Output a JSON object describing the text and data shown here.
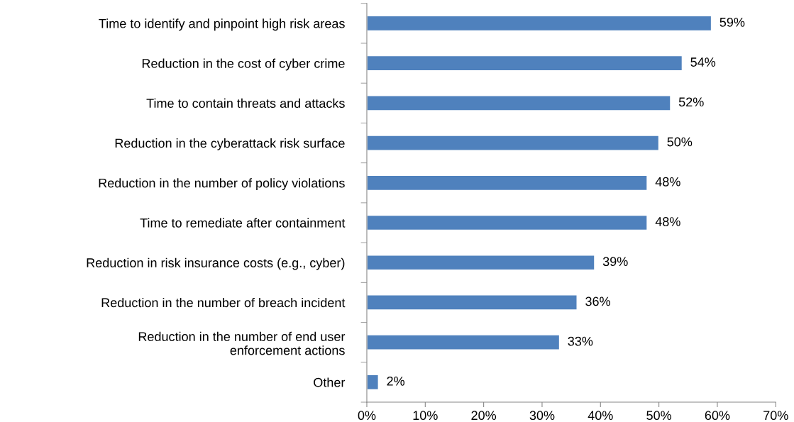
{
  "chart_data": {
    "type": "bar",
    "orientation": "horizontal",
    "categories": [
      "Time to identify and pinpoint high risk areas",
      "Reduction in the cost of cyber crime",
      "Time to contain threats and attacks",
      "Reduction in the cyberattack risk surface",
      "Reduction in the number of policy violations",
      "Time to remediate after containment",
      "Reduction in risk insurance costs (e.g., cyber)",
      "Reduction in the number of breach incident",
      "Reduction in the number of end user\nenforcement actions",
      "Other"
    ],
    "values": [
      59,
      54,
      52,
      50,
      48,
      48,
      39,
      36,
      33,
      2
    ],
    "value_labels": [
      "59%",
      "54%",
      "52%",
      "50%",
      "48%",
      "48%",
      "39%",
      "36%",
      "33%",
      "2%"
    ],
    "color": "#4f81bd",
    "xlim": [
      0,
      70
    ],
    "xticks": [
      {
        "value": 0,
        "label": "0%"
      },
      {
        "value": 10,
        "label": "10%"
      },
      {
        "value": 20,
        "label": "20%"
      },
      {
        "value": 30,
        "label": "30%"
      },
      {
        "value": 40,
        "label": "40%"
      },
      {
        "value": 50,
        "label": "50%"
      },
      {
        "value": 60,
        "label": "60%"
      },
      {
        "value": 70,
        "label": "70%"
      }
    ],
    "grid": false
  }
}
